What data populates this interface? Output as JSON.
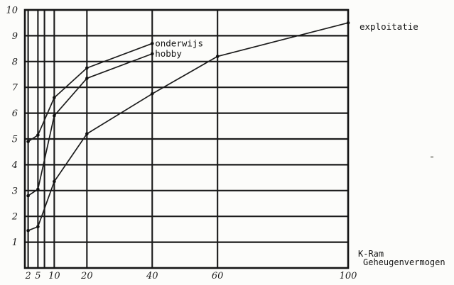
{
  "page": {
    "background": "#fcfcfa",
    "ink": "#1b1b1b"
  },
  "chart_data": {
    "type": "line",
    "title": "",
    "xlabel_line1": "K-Ram",
    "xlabel_line2": "Geheugenvermogen",
    "ylabel": "",
    "xlim": [
      1,
      100
    ],
    "ylim": [
      0,
      10
    ],
    "x_ticks": [
      2,
      5,
      10,
      20,
      40,
      60,
      100
    ],
    "y_ticks": [
      1,
      2,
      3,
      4,
      5,
      6,
      7,
      8,
      9,
      10
    ],
    "x_gridlines": [
      2,
      5,
      7,
      10,
      20,
      40,
      60,
      100
    ],
    "y_gridlines": [
      1,
      2,
      3,
      4,
      5,
      6,
      7,
      8,
      9,
      10
    ],
    "grid": true,
    "legend_position": "inline-labels-at-line-end",
    "series": [
      {
        "name": "onderwijs",
        "x": [
          2,
          5,
          10,
          20,
          40
        ],
        "y": [
          4.9,
          5.15,
          6.6,
          7.75,
          8.7
        ]
      },
      {
        "name": "hobby",
        "x": [
          2,
          5,
          10,
          20,
          40
        ],
        "y": [
          2.8,
          3.05,
          5.9,
          7.35,
          8.3
        ]
      },
      {
        "name": "exploitatie",
        "x": [
          2,
          5,
          10,
          20,
          40,
          60,
          100
        ],
        "y": [
          1.45,
          1.6,
          3.35,
          5.2,
          6.75,
          8.2,
          9.5
        ]
      }
    ]
  }
}
